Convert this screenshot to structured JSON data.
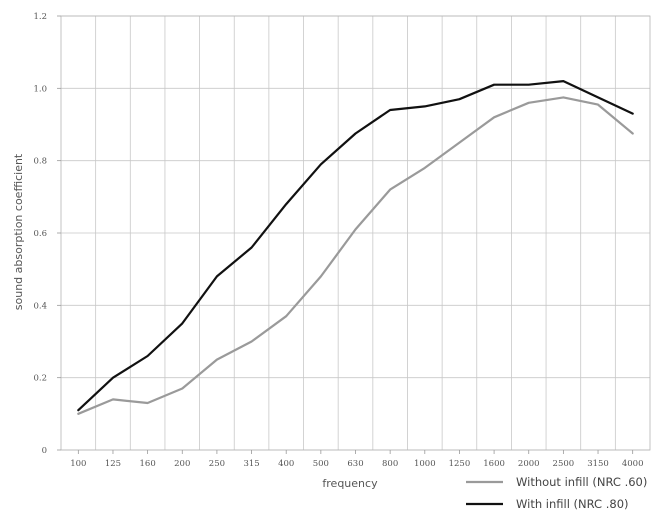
{
  "chart_data": {
    "type": "line",
    "xlabel": "frequency",
    "ylabel": "sound absorption coefficient",
    "categories": [
      "100",
      "125",
      "160",
      "200",
      "250",
      "315",
      "400",
      "500",
      "630",
      "800",
      "1000",
      "1250",
      "1600",
      "2000",
      "2500",
      "3150",
      "4000"
    ],
    "ylim": [
      0,
      1.2
    ],
    "yticks": [
      "0",
      "0.2",
      "0.4",
      "0.6",
      "0.8",
      "1.0",
      "1.2"
    ],
    "ytick_values": [
      0,
      0.2,
      0.4,
      0.6,
      0.8,
      1.0,
      1.2
    ],
    "grid": true,
    "legend_position": "bottom-right",
    "series": [
      {
        "name": "Without infill (NRC .60)",
        "color": "#9a9a9a",
        "values": [
          0.1,
          0.14,
          0.13,
          0.17,
          0.25,
          0.3,
          0.37,
          0.48,
          0.61,
          0.72,
          0.78,
          0.85,
          0.92,
          0.96,
          0.975,
          0.955,
          0.875
        ]
      },
      {
        "name": "With infill (NRC .80)",
        "color": "#111111",
        "values": [
          0.11,
          0.2,
          0.26,
          0.35,
          0.48,
          0.56,
          0.68,
          0.79,
          0.875,
          0.94,
          0.95,
          0.97,
          1.01,
          1.01,
          1.02,
          0.975,
          0.93
        ]
      }
    ]
  }
}
